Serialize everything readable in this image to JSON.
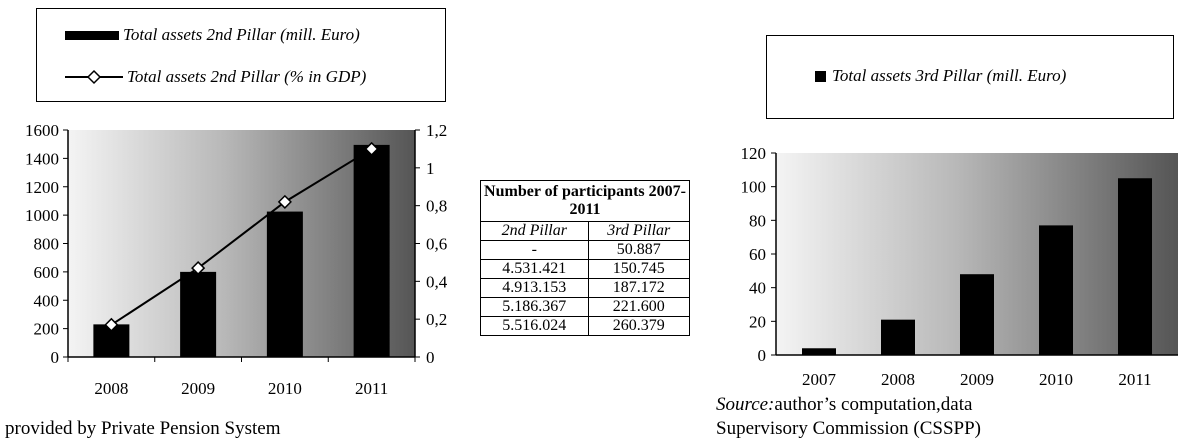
{
  "chart_data": [
    {
      "type": "bar",
      "categories": [
        "2008",
        "2009",
        "2010",
        "2011"
      ],
      "series": [
        {
          "name": "Total assets 2nd Pillar (mill. Euro)",
          "type": "bar",
          "axis": "left",
          "values": [
            230,
            600,
            1025,
            1495
          ]
        },
        {
          "name": "Total assets 2nd Pillar (% in GDP)",
          "type": "line",
          "axis": "right",
          "values": [
            0.17,
            0.47,
            0.82,
            1.1
          ]
        }
      ],
      "ylim": [
        0,
        1600
      ],
      "y_ticks": [
        "0",
        "200",
        "400",
        "600",
        "800",
        "1000",
        "1200",
        "1400",
        "1600"
      ],
      "y2lim": [
        0,
        1.2
      ],
      "y2_ticks": [
        "0",
        "0,2",
        "0,4",
        "0,6",
        "0,8",
        "1",
        "1,2"
      ],
      "legend": "top"
    },
    {
      "type": "bar",
      "categories": [
        "2007",
        "2008",
        "2009",
        "2010",
        "2011"
      ],
      "series": [
        {
          "name": "Total assets 3rd Pillar (mill. Euro)",
          "values": [
            4,
            21,
            48,
            77,
            105
          ]
        }
      ],
      "ylim": [
        0,
        120
      ],
      "y_ticks": [
        "0",
        "20",
        "40",
        "60",
        "80",
        "100",
        "120"
      ],
      "legend": "top"
    }
  ],
  "table": {
    "title": "Number of participants 2007-2011",
    "col1": "2nd Pillar",
    "col2": "3rd Pillar",
    "rows": [
      [
        "-",
        "50.887"
      ],
      [
        "4.531.421",
        "150.745"
      ],
      [
        "4.913.153",
        "187.172"
      ],
      [
        "5.186.367",
        "221.600"
      ],
      [
        "5.516.024",
        "260.379"
      ]
    ]
  },
  "notes": {
    "left_bottom": "provided by Private Pension System",
    "source_label": "Source:",
    "source_text": "author’s computation,data",
    "source_line2": "Supervisory Commission (CSSPP)"
  }
}
